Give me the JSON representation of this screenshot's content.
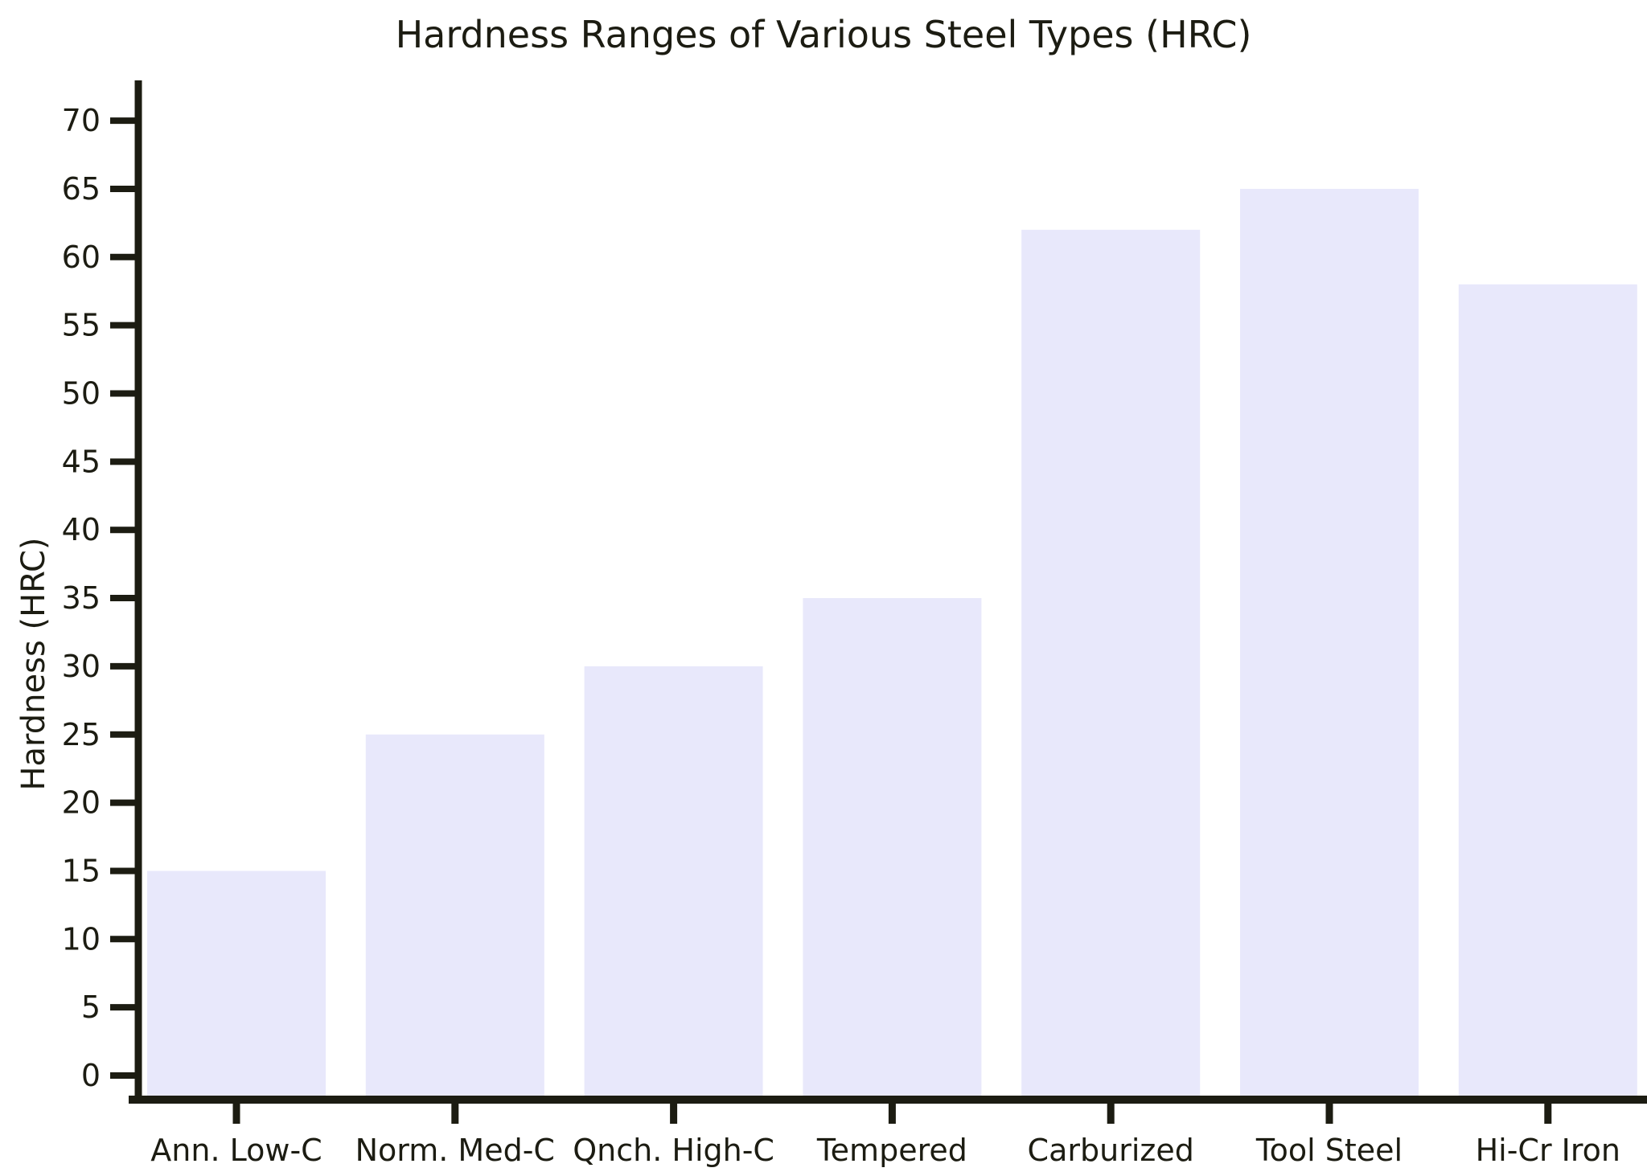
{
  "chart_data": {
    "type": "bar",
    "title": "Hardness Ranges of Various Steel Types (HRC)",
    "ylabel": "Hardness (HRC)",
    "xlabel": "",
    "categories": [
      "Ann. Low-C",
      "Norm. Med-C",
      "Qnch. High-C",
      "Tempered",
      "Carburized",
      "Tool Steel",
      "Hi-Cr Iron"
    ],
    "values": [
      15,
      25,
      30,
      35,
      62,
      65,
      58
    ],
    "ylim": [
      0,
      70
    ],
    "yticks": [
      0,
      5,
      10,
      15,
      20,
      25,
      30,
      35,
      40,
      45,
      50,
      55,
      60,
      65,
      70
    ],
    "grid": false,
    "legend": "none",
    "bar_color": "#e8e8fb",
    "axis_color": "#1c1c12",
    "text_color": "#1c1c12",
    "background_color": "#ffffff"
  }
}
